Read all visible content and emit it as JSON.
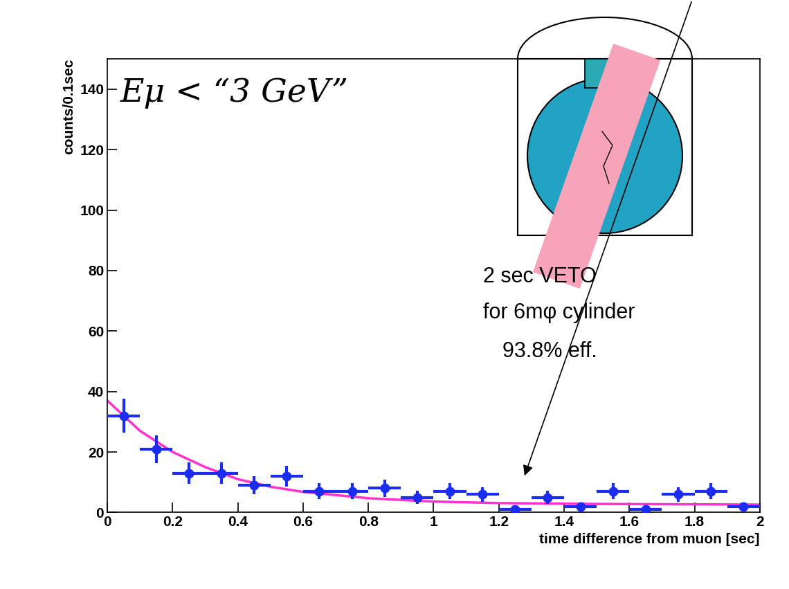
{
  "chart_data": {
    "type": "scatter",
    "x_label": "time difference from muon [sec]",
    "y_label": "counts/0.1sec",
    "x": [
      0.05,
      0.15,
      0.25,
      0.35,
      0.45,
      0.55,
      0.65,
      0.75,
      0.85,
      0.95,
      1.05,
      1.15,
      1.25,
      1.35,
      1.45,
      1.55,
      1.65,
      1.75,
      1.85,
      1.95
    ],
    "values": [
      32,
      21,
      13,
      13,
      9,
      12,
      7,
      7,
      8,
      5,
      7,
      6,
      1,
      5,
      2,
      7,
      1,
      6,
      7,
      2
    ],
    "xerr": [
      0.05,
      0.05,
      0.05,
      0.05,
      0.05,
      0.05,
      0.05,
      0.05,
      0.05,
      0.05,
      0.05,
      0.05,
      0.05,
      0.05,
      0.05,
      0.05,
      0.05,
      0.05,
      0.05,
      0.05
    ],
    "yerr": [
      5.7,
      4.6,
      3.6,
      3.6,
      3.0,
      3.5,
      2.6,
      2.6,
      2.8,
      2.2,
      2.6,
      2.4,
      1.0,
      2.2,
      1.4,
      2.6,
      1.0,
      2.4,
      2.6,
      1.4
    ],
    "color": "#1a2cf0",
    "marker": "circle",
    "fit": {
      "type": "line",
      "color": "#ff30d0",
      "x": [
        0,
        0.1,
        0.2,
        0.3,
        0.4,
        0.5,
        0.6,
        0.8,
        1,
        1.2,
        1.5,
        2
      ],
      "values": [
        37,
        27,
        20,
        15,
        11,
        8.5,
        6.8,
        4.7,
        3.6,
        3.1,
        2.8,
        2.6
      ]
    },
    "xlim": [
      0,
      2
    ],
    "xticks": [
      0,
      0.2,
      0.4,
      0.6,
      0.8,
      1,
      1.2,
      1.4,
      1.6,
      1.8,
      2
    ],
    "ylim": [
      0,
      150
    ],
    "yticks": [
      0,
      20,
      40,
      60,
      80,
      100,
      120,
      140
    ],
    "annotations": [
      "Eμ < “3 GeV”",
      "2 sec VETO",
      "for 6mφ cylinder",
      "93.8% eff."
    ]
  }
}
